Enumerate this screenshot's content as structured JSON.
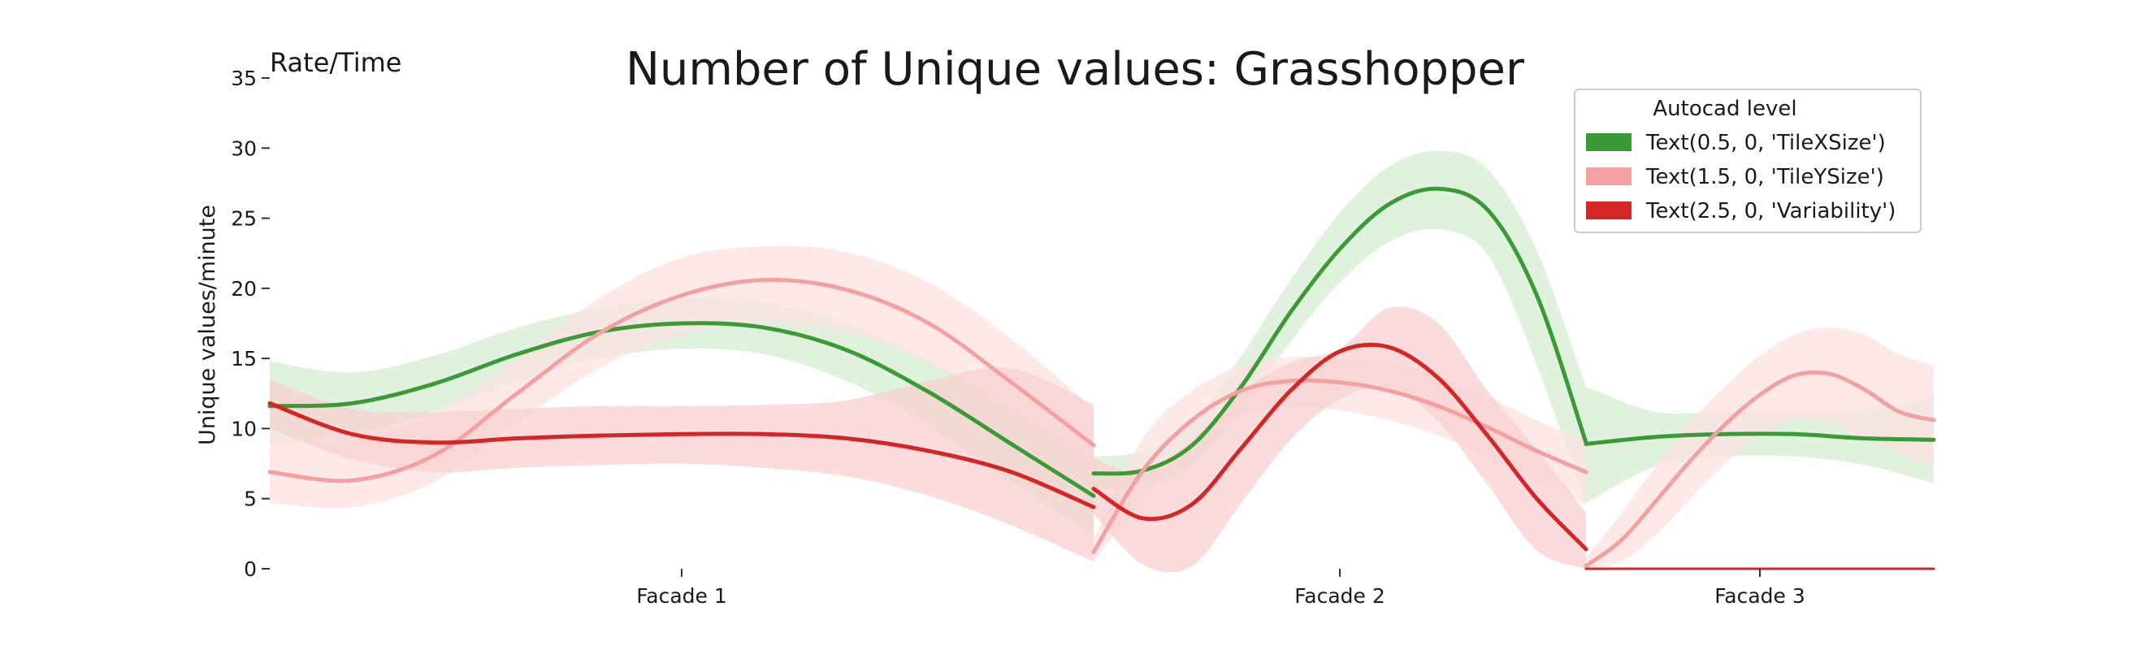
{
  "chart_data": {
    "type": "line",
    "title": "Number of Unique values: Grasshopper",
    "corner_label": "Rate/Time",
    "xlabel": "",
    "ylabel": "Unique values/minute",
    "ylim": [
      0,
      35
    ],
    "yticks": [
      0,
      5,
      10,
      15,
      20,
      25,
      30,
      35
    ],
    "categories": [
      "Facade 1",
      "Facade 2",
      "Facade 3"
    ],
    "grid": false,
    "legend": {
      "title": "Autocad level",
      "placement": "top-right",
      "entries": [
        "Text(0.5, 0, 'TileXSize')",
        "Text(1.5, 0, 'TileYSize')",
        "Text(2.5, 0, 'Variability')"
      ]
    },
    "segments": [
      {
        "category": "Facade 1",
        "x_range": [
          -0.5,
          0.5
        ]
      },
      {
        "category": "Facade 2",
        "x_range": [
          0.5,
          1.5
        ]
      },
      {
        "category": "Facade 3",
        "x_range": [
          1.5,
          2.5
        ]
      }
    ],
    "series": [
      {
        "name": "Text(0.5, 0, 'TileXSize')",
        "color": "#3a9a35",
        "band_color": "#d5ecd3",
        "segments": [
          {
            "x": [
              0,
              0.1,
              0.2,
              0.3,
              0.4,
              0.5,
              0.6,
              0.7,
              0.8,
              0.9,
              1.0
            ],
            "y": [
              11.6,
              11.8,
              13.2,
              15.3,
              16.9,
              17.5,
              17.2,
              15.6,
              12.6,
              8.9,
              5.2
            ],
            "lower": [
              8.8,
              9.6,
              11.2,
              13.3,
              15.0,
              15.7,
              15.3,
              13.4,
              10.2,
              6.2,
              2.3
            ],
            "upper": [
              14.8,
              14.0,
              15.2,
              17.2,
              18.6,
              19.3,
              19.0,
              17.6,
              14.9,
              11.5,
              8.2
            ]
          },
          {
            "x": [
              0,
              0.1,
              0.2,
              0.3,
              0.4,
              0.5,
              0.6,
              0.7,
              0.8,
              0.9,
              1.0
            ],
            "y": [
              6.8,
              7.0,
              8.8,
              13.0,
              18.3,
              22.8,
              26.0,
              27.1,
              25.6,
              19.5,
              9.0
            ],
            "lower": [
              5.7,
              5.8,
              7.3,
              11.3,
              16.2,
              20.4,
              23.3,
              24.2,
              22.4,
              14.5,
              4.5
            ],
            "upper": [
              8.0,
              8.4,
              10.6,
              15.2,
              20.6,
              25.4,
              28.7,
              29.8,
              28.5,
              22.7,
              13.0
            ]
          },
          {
            "x": [
              0,
              0.2,
              0.4,
              0.6,
              0.8,
              1.0
            ],
            "y": [
              8.9,
              9.4,
              9.6,
              9.6,
              9.3,
              9.2
            ],
            "lower": [
              4.7,
              7.3,
              8.0,
              8.0,
              7.4,
              6.1
            ],
            "upper": [
              13.0,
              11.2,
              11.2,
              11.2,
              11.3,
              12.3
            ]
          }
        ]
      },
      {
        "name": "Text(1.5, 0, 'TileYSize')",
        "color": "#f4a0a0",
        "band_color": "#fde1e1",
        "segments": [
          {
            "x": [
              0,
              0.1,
              0.2,
              0.3,
              0.4,
              0.5,
              0.6,
              0.7,
              0.8,
              0.9,
              1.0
            ],
            "y": [
              6.9,
              6.3,
              8.1,
              12.5,
              16.8,
              19.5,
              20.6,
              19.9,
              17.5,
              13.3,
              8.8
            ],
            "lower": [
              4.7,
              4.4,
              6.2,
              10.4,
              14.3,
              16.7,
              17.6,
              16.9,
              14.7,
              10.9,
              6.7
            ],
            "upper": [
              9.7,
              9.1,
              11.1,
              15.0,
              19.3,
              22.2,
              23.0,
              22.6,
              20.4,
              16.4,
              11.4
            ]
          },
          {
            "x": [
              0,
              0.1,
              0.2,
              0.3,
              0.4,
              0.5,
              0.6,
              0.7,
              0.8,
              0.9,
              1.0
            ],
            "y": [
              1.2,
              7.0,
              10.6,
              12.7,
              13.4,
              13.3,
              12.7,
              11.6,
              10.1,
              8.4,
              6.9
            ],
            "lower": [
              0.5,
              4.9,
              8.6,
              10.9,
              11.5,
              11.3,
              10.6,
              9.5,
              8.0,
              6.3,
              4.6
            ],
            "upper": [
              2.1,
              9.3,
              12.7,
              14.5,
              15.1,
              15.0,
              14.7,
              13.8,
              12.3,
              10.6,
              9.1
            ]
          },
          {
            "x": [
              0,
              0.1,
              0.2,
              0.3,
              0.4,
              0.5,
              0.6,
              0.7,
              0.8,
              0.9,
              1.0
            ],
            "y": [
              0.2,
              2.0,
              4.8,
              7.7,
              10.3,
              12.4,
              13.8,
              13.9,
              12.8,
              11.2,
              10.6
            ],
            "lower": [
              0.0,
              0.5,
              2.4,
              5.0,
              7.5,
              9.5,
              10.6,
              10.4,
              9.3,
              8.3,
              7.3
            ],
            "upper": [
              0.8,
              3.9,
              7.3,
              10.5,
              13.0,
              15.2,
              16.7,
              17.2,
              16.7,
              15.3,
              14.5
            ]
          }
        ]
      },
      {
        "name": "Text(2.5, 0, 'Variability')",
        "color": "#d42626",
        "band_color": "#f8d0d0",
        "segments": [
          {
            "x": [
              0,
              0.1,
              0.2,
              0.3,
              0.4,
              0.5,
              0.6,
              0.7,
              0.8,
              0.9,
              1.0
            ],
            "y": [
              11.8,
              9.6,
              9.0,
              9.3,
              9.5,
              9.6,
              9.6,
              9.3,
              8.4,
              6.9,
              4.4
            ],
            "lower": [
              10.0,
              7.8,
              6.9,
              7.2,
              7.4,
              7.5,
              7.2,
              6.6,
              5.2,
              3.1,
              0.5
            ],
            "upper": [
              13.5,
              11.4,
              11.2,
              11.4,
              11.6,
              11.6,
              11.7,
              12.0,
              13.4,
              14.3,
              11.7
            ]
          },
          {
            "x": [
              0,
              0.1,
              0.2,
              0.3,
              0.4,
              0.5,
              0.6,
              0.7,
              0.8,
              0.9,
              1.0
            ],
            "y": [
              5.7,
              3.6,
              4.6,
              8.6,
              12.7,
              15.5,
              15.8,
              13.6,
              9.5,
              5.0,
              1.4
            ],
            "lower": [
              3.9,
              0.3,
              0.2,
              4.7,
              9.2,
              12.1,
              12.9,
              10.5,
              6.0,
              1.3,
              0.0
            ],
            "upper": [
              7.9,
              6.8,
              9.2,
              12.6,
              14.7,
              15.7,
              18.6,
              17.5,
              12.7,
              8.5,
              4.0
            ]
          },
          {
            "x": [
              0,
              1.0
            ],
            "y": [
              0.0,
              0.0
            ],
            "lower": [
              0.0,
              0.0
            ],
            "upper": [
              0.0,
              0.0
            ]
          }
        ]
      }
    ]
  }
}
